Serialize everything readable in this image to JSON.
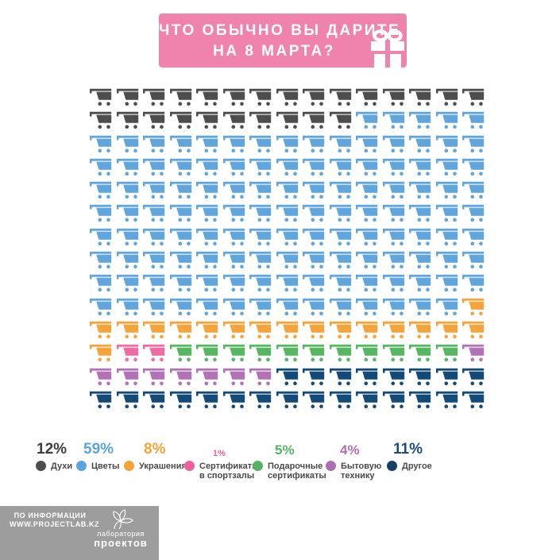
{
  "header": {
    "title_line1": "ЧТО ОБЫЧНО ВЫ ДАРИТЕ",
    "title_line2": "НА 8 МАРТА?",
    "bg_color": "#f083ad"
  },
  "chart_data": {
    "type": "pictogram",
    "title": "ЧТО ОБЫЧНО ВЫ ДАРИТЕ НА 8 МАРТА?",
    "icon": "shopping-cart",
    "grid": {
      "columns": 15,
      "rows": 14,
      "total_icons": 210,
      "fill_order": "row-major"
    },
    "categories": [
      "Духи",
      "Цветы",
      "Украшения",
      "Сертификаты в спортзалы",
      "Подарочные сертификаты",
      "Бытовую технику",
      "Другое"
    ],
    "values": [
      12,
      59,
      8,
      1,
      5,
      4,
      11
    ],
    "series": [
      {
        "name": "Духи",
        "percent": 12,
        "icon_count": 25,
        "color": "#4d4d4d"
      },
      {
        "name": "Цветы",
        "percent": 59,
        "icon_count": 124,
        "color": "#60a5dc"
      },
      {
        "name": "Украшения",
        "percent": 8,
        "icon_count": 17,
        "color": "#f5a43c"
      },
      {
        "name": "Сертификаты в спортзалы",
        "percent": 1,
        "icon_count": 2,
        "color": "#ee6ba3"
      },
      {
        "name": "Подарочные сертификаты",
        "percent": 5,
        "icon_count": 11,
        "color": "#56b661"
      },
      {
        "name": "Бытовую технику",
        "percent": 4,
        "icon_count": 8,
        "color": "#b273b6"
      },
      {
        "name": "Другое",
        "percent": 11,
        "icon_count": 23,
        "color": "#144a77"
      }
    ],
    "legend_position": "bottom"
  },
  "legend": {
    "items": [
      {
        "percent": "12%",
        "percent_color": "#3d3d3d",
        "dot_color": "#4d4d4d",
        "label_lines": [
          "Духи"
        ],
        "size": "large"
      },
      {
        "percent": "59%",
        "percent_color": "#5aa5dd",
        "dot_color": "#5aa5dd",
        "label_lines": [
          "Цветы"
        ],
        "size": "large"
      },
      {
        "percent": "8%",
        "percent_color": "#f5a339",
        "dot_color": "#f5a339",
        "label_lines": [
          "Украшения"
        ],
        "size": "large"
      },
      {
        "percent": "1%",
        "percent_color": "#ee5f9c",
        "dot_color": "#ee5f9c",
        "label_lines": [
          "Сертификаты",
          "в спортзалы"
        ],
        "size": "small"
      },
      {
        "percent": "5%",
        "percent_color": "#52b463",
        "dot_color": "#52b463",
        "label_lines": [
          "Подарочные",
          "сертификаты"
        ],
        "size": "medium"
      },
      {
        "percent": "4%",
        "percent_color": "#af6fb2",
        "dot_color": "#af6fb2",
        "label_lines": [
          "Бытовую",
          "технику"
        ],
        "size": "medium"
      },
      {
        "percent": "11%",
        "percent_color": "#1c4c7c",
        "dot_color": "#173f68",
        "label_lines": [
          "Другое"
        ],
        "size": "large"
      }
    ]
  },
  "footer": {
    "info_line1": "ПО ИНФОРМАЦИИ",
    "info_line2": "WWW.PROJECTLAB.KZ",
    "logo_line1": "лаборатория",
    "logo_line2": "проектов",
    "bar_color": "#9d9d9d"
  }
}
